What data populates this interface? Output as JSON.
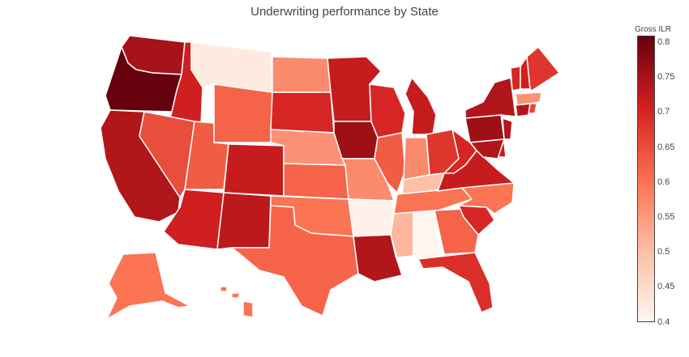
{
  "title": "Underwriting performance by State",
  "colorbar": {
    "title": "Gross ILR",
    "ticks": [
      "0.8",
      "0.75",
      "0.7",
      "0.65",
      "0.6",
      "0.55",
      "0.5",
      "0.45",
      "0.4"
    ],
    "range": [
      0.4,
      0.81
    ],
    "colorscale": [
      "#fff5f0",
      "#fcbea5",
      "#fb7050",
      "#d32020",
      "#67000d"
    ]
  },
  "chart_data": {
    "type": "choropleth",
    "metric": "Gross ILR",
    "values": {
      "OR": 0.81,
      "WA": 0.75,
      "CA": 0.74,
      "ID": 0.71,
      "MT": 0.42,
      "NV": 0.65,
      "UT": 0.63,
      "WY": 0.62,
      "CO": 0.72,
      "AZ": 0.71,
      "NM": 0.73,
      "ND": 0.57,
      "SD": 0.7,
      "NE": 0.56,
      "KS": 0.62,
      "OK": 0.6,
      "TX": 0.62,
      "MN": 0.72,
      "IA": 0.76,
      "MO": 0.57,
      "AR": 0.41,
      "LA": 0.74,
      "WI": 0.7,
      "IL": 0.63,
      "MI": 0.72,
      "IN": 0.57,
      "OH": 0.68,
      "KY": 0.5,
      "TN": 0.6,
      "MS": 0.51,
      "AL": 0.4,
      "GA": 0.62,
      "FL": 0.69,
      "SC": 0.7,
      "NC": 0.6,
      "VA": 0.72,
      "WV": 0.7,
      "PA": 0.76,
      "NY": 0.74,
      "ME": 0.68,
      "VT": 0.7,
      "NH": 0.71,
      "MA": 0.56,
      "CT": 0.74,
      "RI": 0.66,
      "NJ": 0.74,
      "DE": 0.72,
      "MD": 0.74,
      "AK": 0.6,
      "HI": 0.6
    }
  }
}
